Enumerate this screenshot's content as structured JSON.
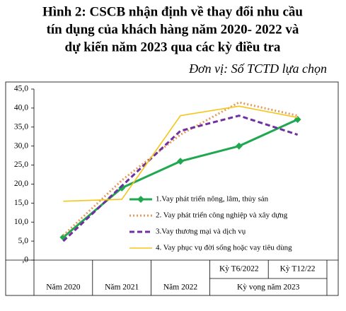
{
  "chart_data": {
    "type": "line",
    "title_lines": [
      "Hình 2: CSCB nhận định về thay đổi nhu cầu",
      "tín dụng của khách hàng năm 2020- 2022 và",
      "dự kiến năm 2023 qua các kỳ điều tra"
    ],
    "subtitle": "Đơn vị: Số TCTD lựa chọn",
    "categories": [
      "Năm 2020",
      "Năm 2021",
      "Năm 2022",
      "Kỳ T6/2022",
      "Kỳ T12/22"
    ],
    "category_group": "Kỳ vọng năm 2023",
    "ylim": [
      0,
      45
    ],
    "yticks": [
      {
        "value": 0,
        "label": ",0"
      },
      {
        "value": 5,
        "label": "5,0"
      },
      {
        "value": 10,
        "label": "10,0"
      },
      {
        "value": 15,
        "label": "15,0"
      },
      {
        "value": 20,
        "label": "20,0"
      },
      {
        "value": 25,
        "label": "25,0"
      },
      {
        "value": 30,
        "label": "30,0"
      },
      {
        "value": 35,
        "label": "35,0"
      },
      {
        "value": 40,
        "label": "40,0"
      },
      {
        "value": 45,
        "label": "45,0"
      }
    ],
    "grid": false,
    "legend": "lower right",
    "series": [
      {
        "name": "1.Vay phát triển nông, lâm, thủy sản",
        "color": "#1fa84f",
        "style": "solid",
        "marker": "diamond",
        "values": [
          6,
          19,
          26,
          30,
          37
        ]
      },
      {
        "name": "2. Vay phát triển công nghiệp và xây dựng",
        "color": "#e59a5a",
        "style": "dotted",
        "values": [
          6.5,
          21,
          33,
          41.5,
          38
        ]
      },
      {
        "name": "3.Vay thương mại và dịch vụ",
        "color": "#7030a0",
        "style": "dashed",
        "values": [
          5,
          19.5,
          34,
          38,
          33
        ]
      },
      {
        "name": "4. Vay phục vụ đời sống hoặc vay tiêu dùng",
        "color": "#f5c518",
        "style": "solid",
        "values": [
          15.5,
          16,
          38,
          40.5,
          37.5
        ]
      }
    ]
  }
}
